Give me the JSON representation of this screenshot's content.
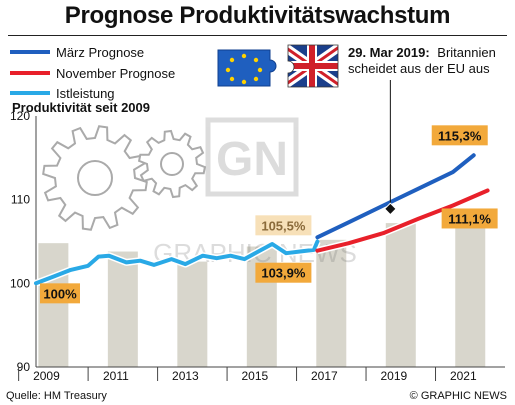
{
  "title": "Prognose Produktivitätswachstum",
  "subtitle": "Produktivität seit 2009",
  "legend": [
    {
      "label": "März Prognose",
      "color": "#1f5fbf"
    },
    {
      "label": "November Prognose",
      "color": "#e8202a"
    },
    {
      "label": "Istleistung",
      "color": "#29a9e6"
    }
  ],
  "annotation": {
    "line1": "29. Mar 2019:",
    "line2": "Britannien",
    "line3": "scheidet aus der EU aus",
    "icons": [
      "eu-flag-puzzle-icon",
      "union-jack-puzzle-icon"
    ]
  },
  "source": "Quelle: HM Treasury",
  "credit": "© GRAPHIC NEWS",
  "watermark": "GRAPHIC NEWS",
  "chart_data": {
    "type": "line",
    "title": "Prognose Produktivitätswachstum",
    "ylabel": "Produktivität seit 2009",
    "xlim": [
      2009,
      2022.5
    ],
    "ylim": [
      90,
      120
    ],
    "yticks": [
      90,
      100,
      110,
      120
    ],
    "xticks": [
      2009,
      2011,
      2013,
      2015,
      2017,
      2019,
      2021
    ],
    "grid": false,
    "legend_position": "top-left",
    "background_bars": [
      2009,
      2011,
      2013,
      2015,
      2017,
      2019,
      2021
    ],
    "series": [
      {
        "name": "Istleistung",
        "color": "#29a9e6",
        "points": [
          [
            2009,
            100
          ],
          [
            2009.5,
            100.8
          ],
          [
            2010,
            101.6
          ],
          [
            2010.5,
            102.1
          ],
          [
            2010.8,
            103.2
          ],
          [
            2011.1,
            103.3
          ],
          [
            2011.6,
            102.5
          ],
          [
            2012,
            102.7
          ],
          [
            2012.4,
            102.2
          ],
          [
            2012.9,
            102.9
          ],
          [
            2013.3,
            102.3
          ],
          [
            2013.8,
            103.3
          ],
          [
            2014.2,
            103.0
          ],
          [
            2014.6,
            103.3
          ],
          [
            2015.0,
            102.9
          ],
          [
            2015.4,
            103.8
          ],
          [
            2015.8,
            104.7
          ],
          [
            2016.2,
            103.6
          ],
          [
            2016.6,
            103.8
          ],
          [
            2017.0,
            104.0
          ],
          [
            2017.1,
            105.0
          ]
        ]
      },
      {
        "name": "März Prognose",
        "color": "#1f5fbf",
        "points": [
          [
            2017.1,
            105.5
          ],
          [
            2018,
            107.3
          ],
          [
            2019,
            109.3
          ],
          [
            2020,
            111.3
          ],
          [
            2021,
            113.3
          ],
          [
            2021.6,
            115.3
          ]
        ]
      },
      {
        "name": "November Prognose",
        "color": "#e8202a",
        "points": [
          [
            2017.1,
            103.9
          ],
          [
            2018,
            104.8
          ],
          [
            2019,
            106.0
          ],
          [
            2020,
            107.7
          ],
          [
            2021,
            109.3
          ],
          [
            2022.0,
            111.1
          ]
        ]
      }
    ],
    "data_labels": [
      {
        "text": "100%",
        "x": 2009,
        "y": 100,
        "series": "Istleistung"
      },
      {
        "text": "105,5%",
        "x": 2017.1,
        "y": 105.5,
        "series": "März Prognose"
      },
      {
        "text": "103,9%",
        "x": 2017.1,
        "y": 103.9,
        "series": "November Prognose"
      },
      {
        "text": "115,3%",
        "x": 2021.6,
        "y": 115.3,
        "series": "März Prognose"
      },
      {
        "text": "111,1%",
        "x": 2022.0,
        "y": 111.1,
        "series": "November Prognose"
      }
    ],
    "marker": {
      "x": 2019.2,
      "y": 108.9,
      "label": "29. Mar 2019"
    }
  }
}
